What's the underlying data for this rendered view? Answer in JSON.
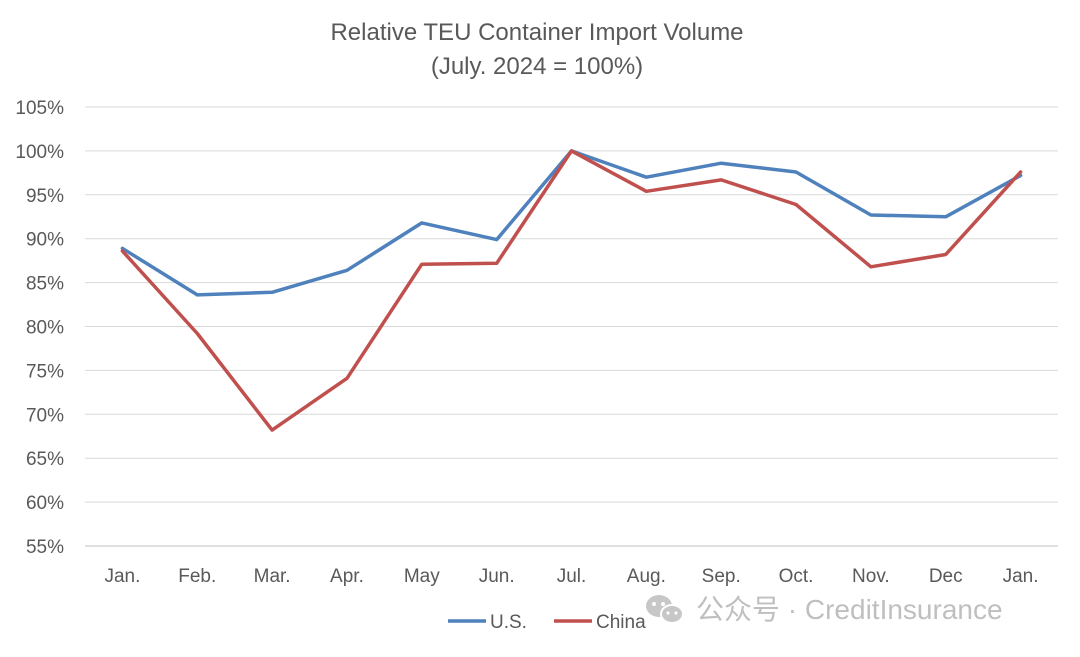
{
  "chart_data": {
    "type": "line",
    "title": "Relative TEU Container Import Volume",
    "subtitle": "(July. 2024 = 100%)",
    "categories": [
      "Jan.",
      "Feb.",
      "Mar.",
      "Apr.",
      "May",
      "Jun.",
      "Jul.",
      "Aug.",
      "Sep.",
      "Oct.",
      "Nov.",
      "Dec",
      "Jan."
    ],
    "series": [
      {
        "name": "U.S.",
        "color": "#4f81bd",
        "values": [
          88.9,
          83.6,
          83.9,
          86.4,
          91.8,
          89.9,
          100.0,
          97.0,
          98.6,
          97.6,
          92.7,
          92.5,
          97.2
        ]
      },
      {
        "name": "China",
        "color": "#c0504d",
        "values": [
          88.6,
          79.2,
          68.2,
          74.1,
          87.1,
          87.2,
          100.0,
          95.4,
          96.7,
          93.9,
          86.8,
          88.2,
          97.6
        ]
      }
    ],
    "y_ticks": [
      "55%",
      "60%",
      "65%",
      "70%",
      "75%",
      "80%",
      "85%",
      "90%",
      "95%",
      "100%",
      "105%"
    ],
    "ylim": [
      55,
      105
    ],
    "ylabel": "",
    "xlabel": "",
    "grid": true,
    "legend_position": "bottom-center"
  },
  "watermark": {
    "text": "公众号 · CreditInsurance",
    "icon": "wechat-icon"
  }
}
